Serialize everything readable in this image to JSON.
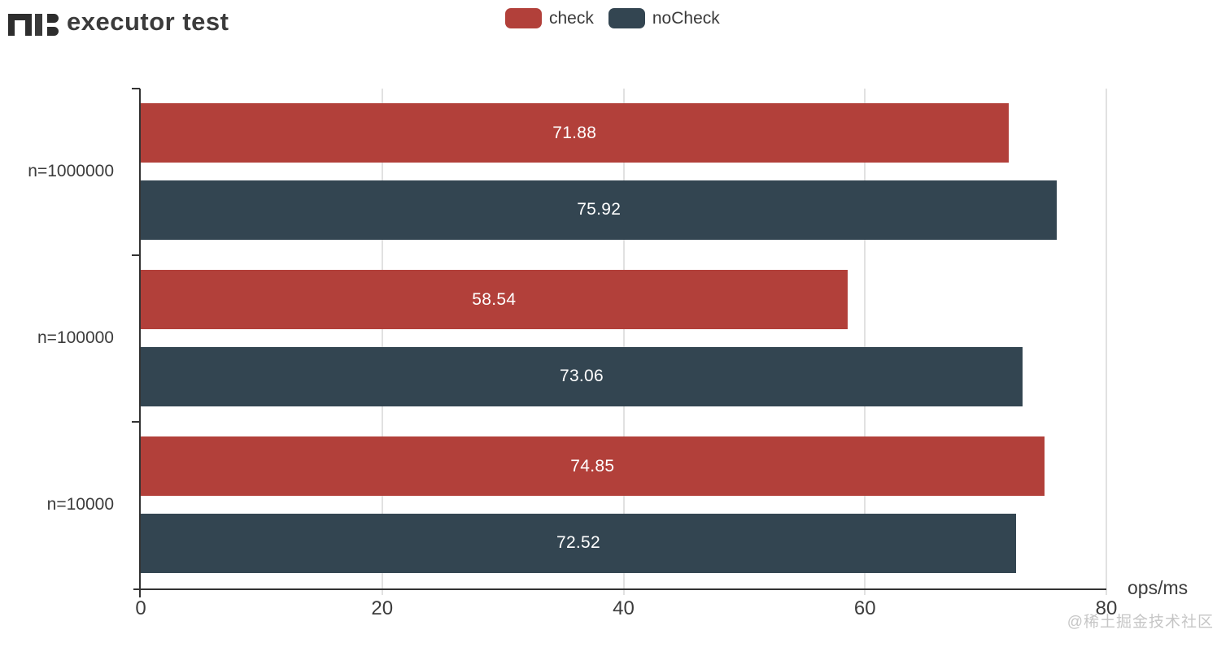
{
  "header": {
    "title": "executor test"
  },
  "legend": {
    "items": [
      {
        "label": "check"
      },
      {
        "label": "noCheck"
      }
    ]
  },
  "axis": {
    "unit_label": "ops/ms"
  },
  "watermark": "@稀土掘金技术社区",
  "colors": {
    "check": "#b2403a",
    "noCheck": "#334551",
    "axis": "#333333",
    "grid": "#e1e1e1"
  },
  "chart_data": {
    "type": "bar",
    "orientation": "horizontal",
    "title": "executor test",
    "categories": [
      "n=1000000",
      "n=100000",
      "n=10000"
    ],
    "series": [
      {
        "name": "check",
        "color": "#b2403a",
        "values": [
          71.88,
          58.54,
          74.85
        ]
      },
      {
        "name": "noCheck",
        "color": "#334551",
        "values": [
          75.92,
          73.06,
          72.52
        ]
      }
    ],
    "xlabel": "ops/ms",
    "xlim": [
      0,
      80
    ],
    "x_ticks": [
      0,
      20,
      40,
      60,
      80
    ],
    "grid": true,
    "legend_position": "top-center",
    "value_labels": "inside-center"
  }
}
